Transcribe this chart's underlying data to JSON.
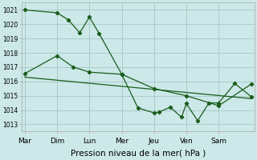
{
  "bg_color": "#cce8e8",
  "grid_color": "#aacccc",
  "line_color": "#1a5c1a",
  "marker_color": "#1a5c1a",
  "xlabel": "Pression niveau de la mer( hPa )",
  "xlabel_fontsize": 7.5,
  "yticks": [
    1013,
    1014,
    1015,
    1016,
    1017,
    1018,
    1019,
    1020,
    1021
  ],
  "ylim": [
    1012.5,
    1021.5
  ],
  "xtick_labels": [
    "Mar",
    "Dim",
    "Lun",
    "Mer",
    "Jeu",
    "Ven",
    "Sam"
  ],
  "xlim": [
    -0.1,
    7.1
  ],
  "series1_x": [
    0.0,
    1.0,
    1.35,
    1.7,
    2.0,
    2.3,
    3.0,
    3.5,
    4.0,
    4.15,
    4.5,
    4.85,
    5.0,
    5.35,
    5.7,
    6.0,
    6.5,
    7.0
  ],
  "series1_y": [
    1021.0,
    1020.8,
    1020.3,
    1019.4,
    1020.5,
    1019.35,
    1016.5,
    1014.15,
    1013.8,
    1013.85,
    1014.2,
    1013.5,
    1014.45,
    1013.25,
    1014.5,
    1014.5,
    1015.85,
    1014.95
  ],
  "series2_x": [
    0.0,
    1.0,
    1.5,
    2.0,
    3.0,
    4.0,
    5.0,
    6.0,
    7.0
  ],
  "series2_y": [
    1016.55,
    1017.8,
    1017.0,
    1016.65,
    1016.5,
    1015.5,
    1015.0,
    1014.3,
    1015.8
  ],
  "series3_x": [
    0.0,
    7.0
  ],
  "series3_y": [
    1016.3,
    1014.8
  ]
}
